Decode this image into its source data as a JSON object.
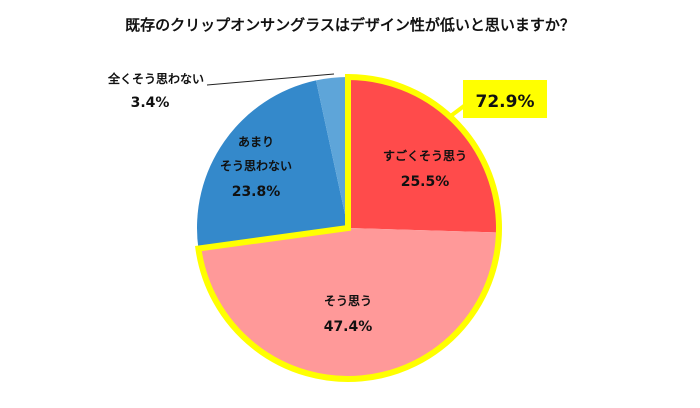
{
  "chart_data": {
    "type": "pie",
    "title": "既存のクリップオンサングラスはデザイン性が低いと思いますか？",
    "start": "12 o'clock, clockwise",
    "slices": [
      {
        "label": "すごくそう思う",
        "value": 25.5,
        "value_label": "25.5%",
        "color": "#FF4B4B"
      },
      {
        "label": "そう思う",
        "value": 47.4,
        "value_label": "47.4%",
        "color": "#FF9999"
      },
      {
        "label": "あまりそう思わない",
        "label_lines": [
          "あまり",
          "そう思わない"
        ],
        "value": 23.8,
        "value_label": "23.8%",
        "color": "#3489CB"
      },
      {
        "label": "全くそう思わない",
        "value": 3.4,
        "value_label": "3.4%",
        "color": "#5EA5D9"
      }
    ],
    "highlight": {
      "value_label": "72.9%",
      "slices": [
        "すごくそう思う",
        "そう思う"
      ],
      "color": "#FFFF00"
    }
  }
}
